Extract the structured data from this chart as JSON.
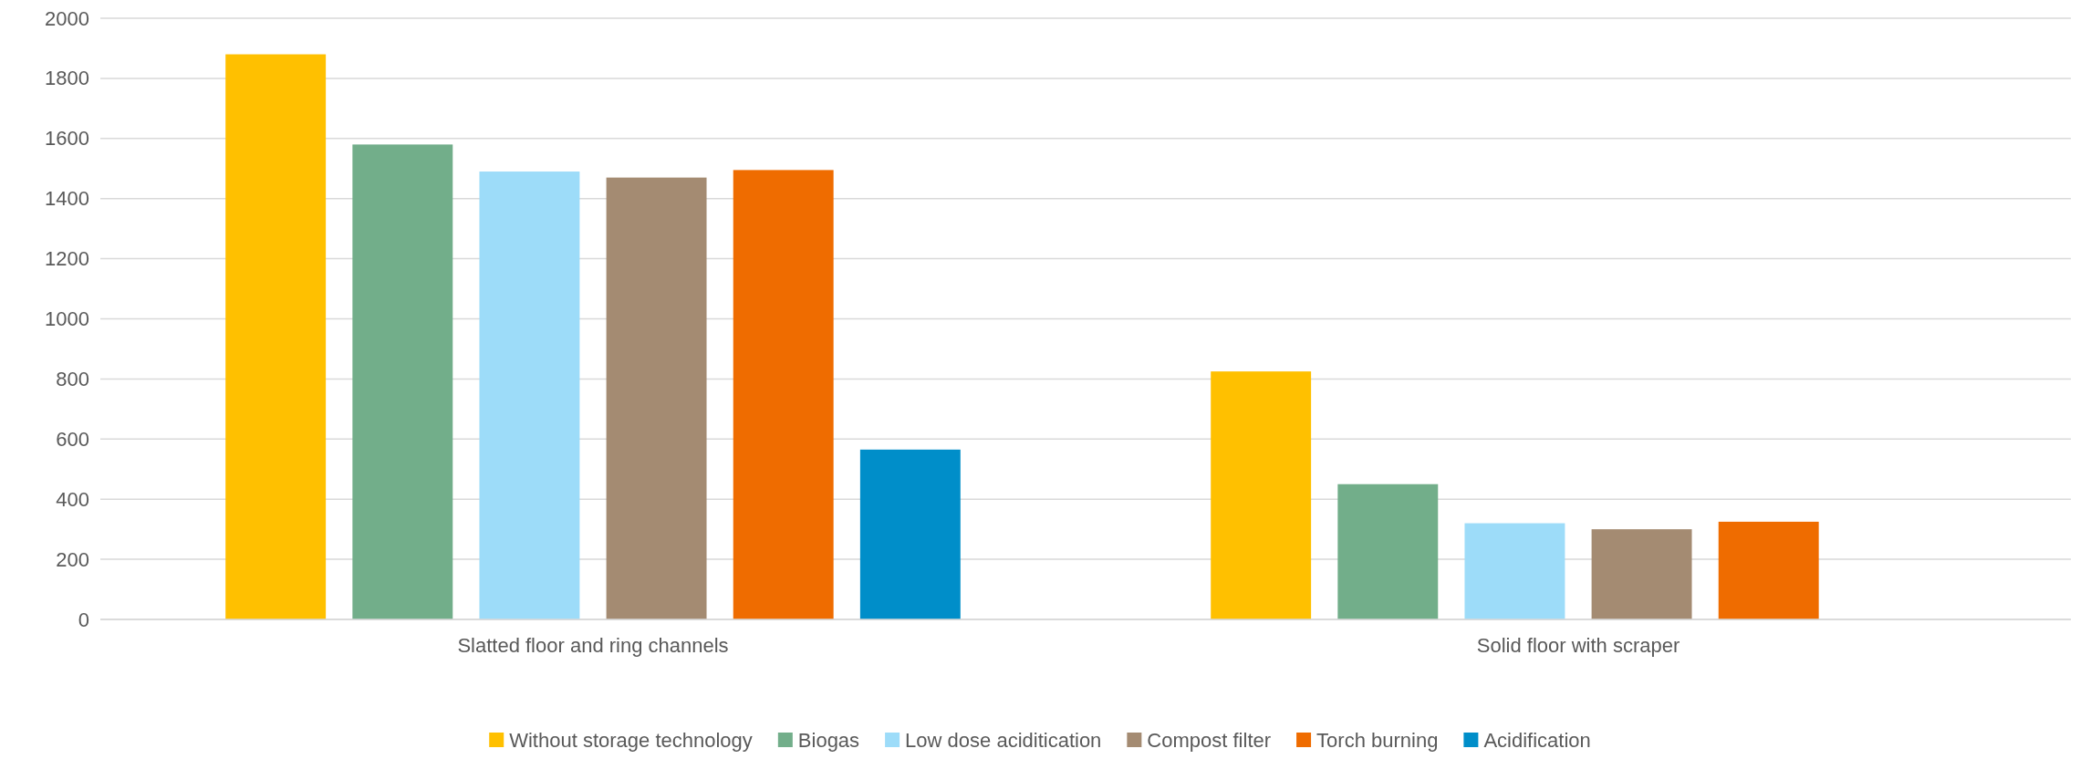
{
  "chart_data": {
    "type": "bar",
    "categories": [
      "Slatted floor and ring channels",
      "Solid floor with scraper"
    ],
    "series": [
      {
        "name": "Without storage technology",
        "color": "#ffc000",
        "values": [
          1880,
          825
        ]
      },
      {
        "name": "Biogas",
        "color": "#72ae8a",
        "values": [
          1580,
          450
        ]
      },
      {
        "name": "Low dose aciditication",
        "color": "#9ddcf9",
        "values": [
          1490,
          320
        ]
      },
      {
        "name": "Compost filter",
        "color": "#a48b72",
        "values": [
          1470,
          300
        ]
      },
      {
        "name": "Torch burning",
        "color": "#ef6c00",
        "values": [
          1495,
          325
        ]
      },
      {
        "name": "Acidification",
        "color": "#008ec9",
        "values": [
          565,
          null
        ]
      }
    ],
    "ylim": [
      0,
      2000
    ],
    "yticks": [
      0,
      200,
      400,
      600,
      800,
      1000,
      1200,
      1400,
      1600,
      1800,
      2000
    ],
    "grid": "y",
    "legend": "bottom"
  }
}
